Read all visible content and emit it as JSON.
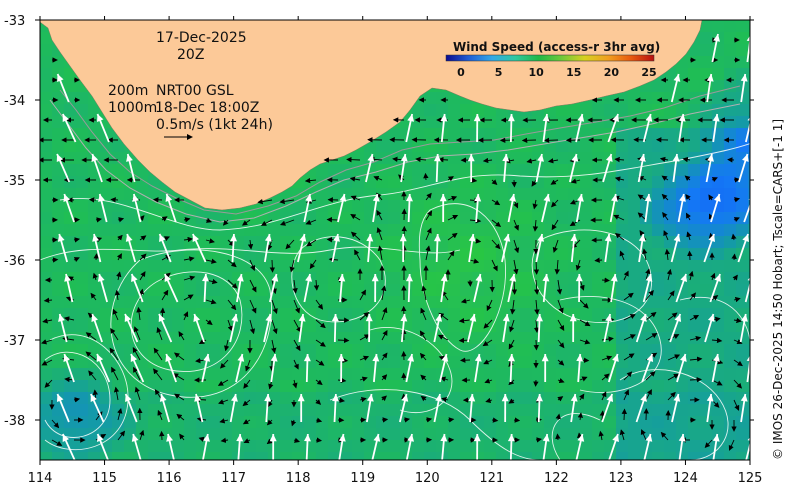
{
  "annotations": {
    "date": "17-Dec-2025",
    "time": "20Z",
    "depth_200": "200m",
    "depth_1000": "1000m",
    "product": "NRT00 GSL",
    "valid": "18-Dec 18:00Z",
    "scale_vector": "0.5m/s (1kt 24h)"
  },
  "colorbar": {
    "title": "Wind Speed (access-r 3hr avg)",
    "ticks": [
      "0",
      "5",
      "10",
      "15",
      "20",
      "25"
    ],
    "stops": [
      "#0b0b8f",
      "#1f5fd6",
      "#33a8e6",
      "#2fc9a0",
      "#1fb847",
      "#6ec93a",
      "#d8d020",
      "#f0a020",
      "#e85a10",
      "#b81010"
    ]
  },
  "axes": {
    "x_ticks": [
      "114",
      "115",
      "116",
      "117",
      "118",
      "119",
      "120",
      "121",
      "122",
      "123",
      "124",
      "125"
    ],
    "y_ticks": [
      "-33",
      "-34",
      "-35",
      "-36",
      "-37",
      "-38"
    ],
    "lon_range": [
      114,
      125
    ],
    "lat_range": [
      -38.5,
      -33
    ]
  },
  "credit": "© IMOS 26-Dec-2025 14:50 Hobart; Tscale=CARS+[-1 1]",
  "colors": {
    "land": "#fcc998",
    "ocean_base": "#1fb861",
    "wind_arrow": "#ffffff",
    "current_arrow": "#000000"
  }
}
